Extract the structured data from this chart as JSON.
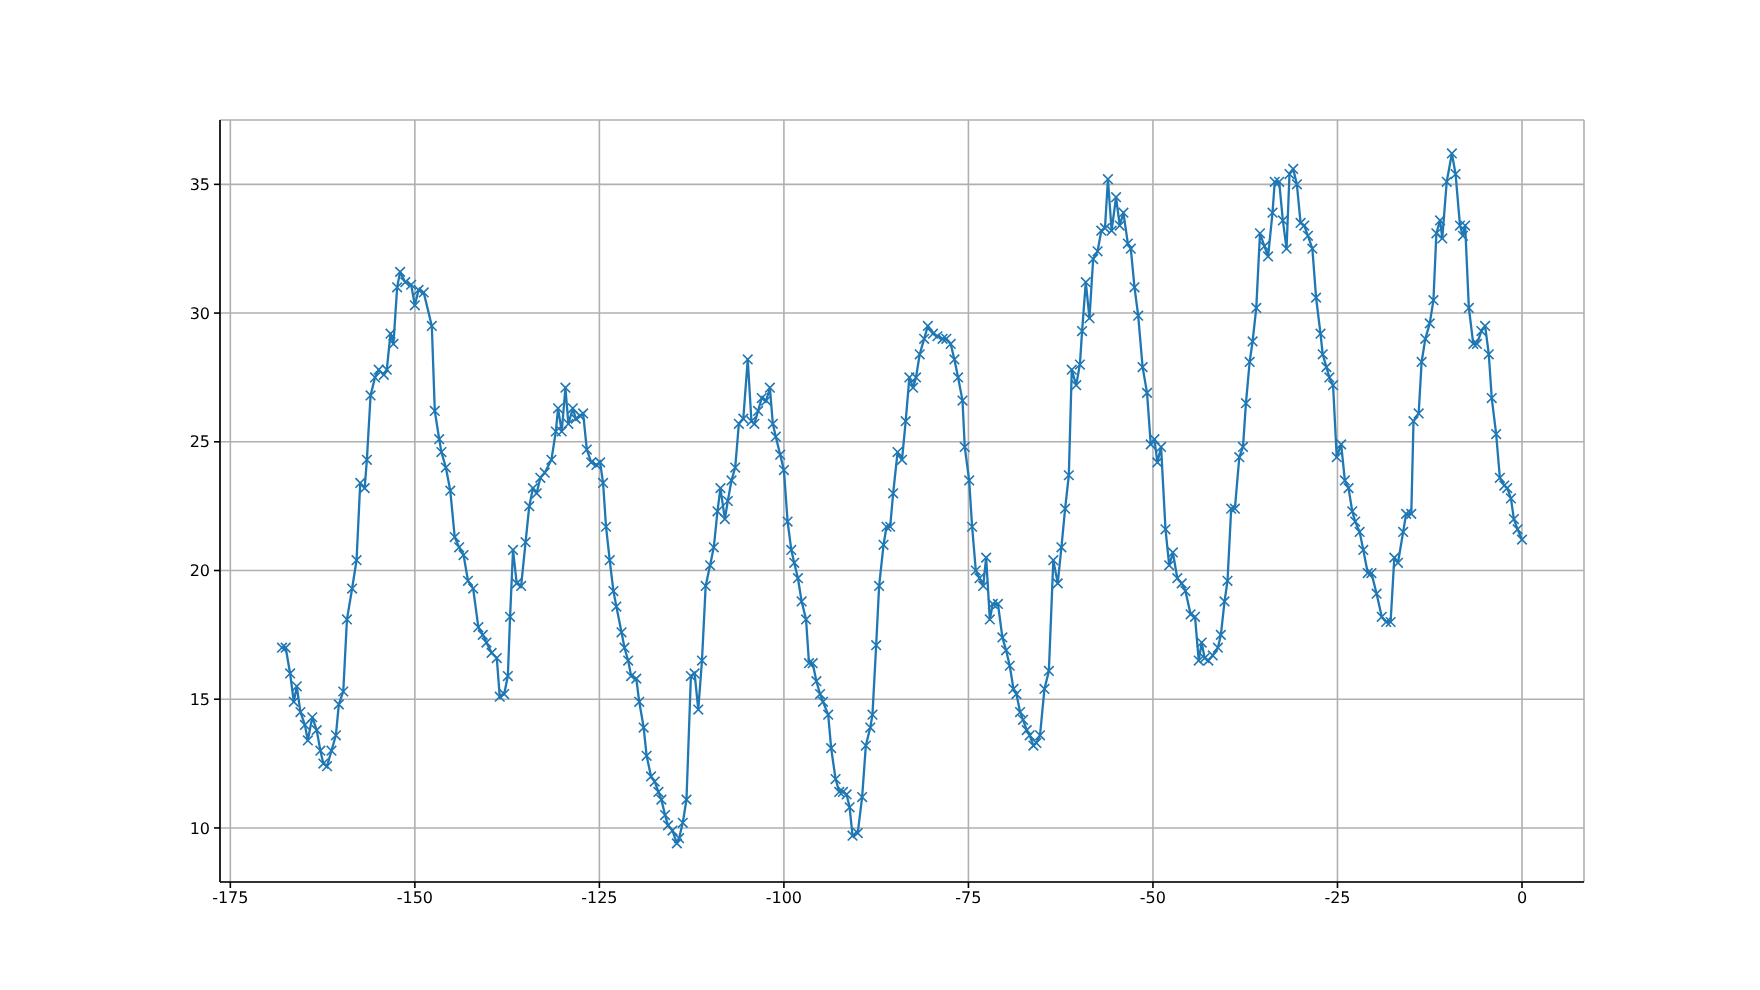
{
  "chart_data": {
    "type": "line",
    "color": "#1f77b4",
    "marker": "cross",
    "line_style": "solid",
    "grid": true,
    "xlim": [
      -176.4,
      8.4
    ],
    "ylim": [
      7.9,
      37.5
    ],
    "xticks": [
      -175,
      -150,
      -125,
      -100,
      -75,
      -50,
      -25,
      0
    ],
    "yticks": [
      10,
      15,
      20,
      25,
      30,
      35
    ],
    "x": [
      -168,
      -167.5,
      -166.9,
      -166.4,
      -166.0,
      -165.5,
      -164.9,
      -164.5,
      -163.9,
      -163.3,
      -162.8,
      -162.4,
      -161.9,
      -161.3,
      -160.7,
      -160.3,
      -159.7,
      -159.2,
      -158.5,
      -157.9,
      -157.4,
      -156.8,
      -156.5,
      -156.0,
      -155.4,
      -154.9,
      -154.2,
      -153.8,
      -153.3,
      -152.9,
      -152.4,
      -152.0,
      -151.3,
      -150.5,
      -150.0,
      -149.5,
      -148.8,
      -147.7,
      -147.3,
      -146.7,
      -146.4,
      -145.8,
      -145.2,
      -144.6,
      -144.0,
      -143.4,
      -142.8,
      -142.1,
      -141.4,
      -140.8,
      -140.3,
      -139.6,
      -138.9,
      -138.5,
      -137.9,
      -137.4,
      -137.1,
      -136.7,
      -136.2,
      -135.6,
      -135.0,
      -134.5,
      -134.0,
      -133.5,
      -133.0,
      -132.4,
      -131.5,
      -130.9,
      -130.6,
      -130.1,
      -129.6,
      -129.2,
      -128.6,
      -128.2,
      -127.6,
      -127.2,
      -126.7,
      -126.1,
      -125.4,
      -124.9,
      -124.5,
      -124.1,
      -123.6,
      -123.1,
      -122.7,
      -122.0,
      -121.6,
      -121.1,
      -120.7,
      -120.0,
      -119.6,
      -119.0,
      -118.6,
      -118.0,
      -117.5,
      -117.0,
      -116.6,
      -116.1,
      -115.7,
      -115.1,
      -114.5,
      -114.2,
      -113.7,
      -113.2,
      -112.6,
      -112.1,
      -111.6,
      -111.1,
      -110.6,
      -110.0,
      -109.5,
      -109.0,
      -108.6,
      -108.0,
      -107.6,
      -107.1,
      -106.6,
      -106.1,
      -105.5,
      -104.9,
      -104.4,
      -104.0,
      -103.5,
      -103.0,
      -102.4,
      -101.9,
      -101.5,
      -101.1,
      -100.5,
      -100.0,
      -99.5,
      -99.0,
      -98.6,
      -98.1,
      -97.6,
      -97.0,
      -96.6,
      -96.1,
      -95.6,
      -95.1,
      -94.7,
      -94.0,
      -93.6,
      -93.0,
      -92.5,
      -92.0,
      -91.5,
      -91.1,
      -90.7,
      -90.0,
      -89.4,
      -88.9,
      -88.3,
      -88.0,
      -87.5,
      -87.1,
      -86.5,
      -86.1,
      -85.6,
      -85.2,
      -84.6,
      -84.0,
      -83.5,
      -83.0,
      -82.5,
      -82.1,
      -81.6,
      -81.0,
      -80.5,
      -79.8,
      -79.2,
      -78.5,
      -78.0,
      -77.4,
      -76.9,
      -76.4,
      -75.8,
      -75.5,
      -74.9,
      -74.5,
      -74.0,
      -73.5,
      -73.0,
      -72.6,
      -72.1,
      -71.7,
      -71.0,
      -70.4,
      -69.9,
      -69.4,
      -68.9,
      -68.5,
      -68.0,
      -67.6,
      -67.1,
      -66.7,
      -66.2,
      -65.8,
      -65.3,
      -64.7,
      -64.1,
      -63.5,
      -62.9,
      -62.4,
      -61.9,
      -61.4,
      -61.0,
      -60.4,
      -59.9,
      -59.6,
      -59.1,
      -58.6,
      -58.1,
      -57.5,
      -57.0,
      -56.5,
      -56.1,
      -55.6,
      -55.0,
      -54.5,
      -54.0,
      -53.4,
      -53.0,
      -52.5,
      -52.0,
      -51.4,
      -50.8,
      -50.3,
      -49.8,
      -49.4,
      -48.9,
      -48.3,
      -47.8,
      -47.3,
      -46.7,
      -46.1,
      -45.6,
      -44.9,
      -44.3,
      -43.8,
      -43.4,
      -43.0,
      -42.5,
      -41.9,
      -41.2,
      -40.8,
      -40.3,
      -39.9,
      -39.4,
      -38.9,
      -38.3,
      -37.8,
      -37.4,
      -36.9,
      -36.5,
      -36.0,
      -35.5,
      -34.9,
      -34.4,
      -33.8,
      -33.5,
      -32.9,
      -32.4,
      -31.9,
      -31.5,
      -31.0,
      -30.5,
      -30.0,
      -29.5,
      -29.0,
      -28.4,
      -27.9,
      -27.3,
      -27.0,
      -26.5,
      -26.1,
      -25.6,
      -25.1,
      -24.5,
      -24.0,
      -23.5,
      -23.0,
      -22.6,
      -22.0,
      -21.5,
      -20.9,
      -20.4,
      -19.7,
      -19.0,
      -18.4,
      -17.8,
      -17.3,
      -16.8,
      -16.1,
      -15.7,
      -15.0,
      -14.7,
      -14.0,
      -13.6,
      -13.1,
      -12.5,
      -12.0,
      -11.6,
      -11.1,
      -10.8,
      -10.2,
      -9.5,
      -9.0,
      -8.4,
      -8.0,
      -7.7,
      -7.2,
      -6.6,
      -6.1,
      -5.5,
      -5.0,
      -4.5,
      -4.1,
      -3.5,
      -3.0,
      -2.4,
      -2.0,
      -1.5,
      -1.1,
      -0.6,
      0
    ],
    "values": [
      17.0,
      17.0,
      16.0,
      14.9,
      15.5,
      14.5,
      14.0,
      13.4,
      14.3,
      13.8,
      13.0,
      12.5,
      12.4,
      13.0,
      13.6,
      14.8,
      15.3,
      18.1,
      19.3,
      20.4,
      23.4,
      23.2,
      24.3,
      26.8,
      27.5,
      27.8,
      27.6,
      27.8,
      29.2,
      28.8,
      31.0,
      31.6,
      31.2,
      31.1,
      30.3,
      30.9,
      30.8,
      29.5,
      26.2,
      25.1,
      24.6,
      24.0,
      23.1,
      21.3,
      20.9,
      20.6,
      19.6,
      19.3,
      17.8,
      17.5,
      17.2,
      16.8,
      16.6,
      15.1,
      15.2,
      15.9,
      18.2,
      20.8,
      19.5,
      19.4,
      21.1,
      22.5,
      23.2,
      23.0,
      23.6,
      23.8,
      24.3,
      25.4,
      26.3,
      25.4,
      27.1,
      25.7,
      26.3,
      25.9,
      26.0,
      26.1,
      24.7,
      24.2,
      24.1,
      24.2,
      23.4,
      21.7,
      20.4,
      19.2,
      18.6,
      17.6,
      17.0,
      16.5,
      15.9,
      15.8,
      14.9,
      13.9,
      12.8,
      12.0,
      11.8,
      11.4,
      11.1,
      10.5,
      10.1,
      9.9,
      9.4,
      9.6,
      10.2,
      11.1,
      15.9,
      16.0,
      14.6,
      16.5,
      19.4,
      20.2,
      20.9,
      22.3,
      23.2,
      22.0,
      22.7,
      23.5,
      24.0,
      25.7,
      25.9,
      28.2,
      25.8,
      25.7,
      26.2,
      26.7,
      26.6,
      27.1,
      25.7,
      25.2,
      24.5,
      23.9,
      21.9,
      20.8,
      20.3,
      19.7,
      18.8,
      18.1,
      16.4,
      16.4,
      15.7,
      15.2,
      14.9,
      14.4,
      13.1,
      11.9,
      11.4,
      11.4,
      11.3,
      10.8,
      9.7,
      9.8,
      11.2,
      13.2,
      13.9,
      14.4,
      17.1,
      19.4,
      21.0,
      21.7,
      21.7,
      23.0,
      24.6,
      24.3,
      25.8,
      27.5,
      27.1,
      27.5,
      28.4,
      29.0,
      29.5,
      29.2,
      29.1,
      29.0,
      29.0,
      28.8,
      28.2,
      27.5,
      26.6,
      24.8,
      23.5,
      21.7,
      20.0,
      19.7,
      19.4,
      20.5,
      18.1,
      18.7,
      18.7,
      17.4,
      16.9,
      16.3,
      15.4,
      15.2,
      14.5,
      14.2,
      13.8,
      13.6,
      13.2,
      13.3,
      13.6,
      15.4,
      16.1,
      20.4,
      19.5,
      20.9,
      22.4,
      23.7,
      27.8,
      27.2,
      28.0,
      29.3,
      31.2,
      29.8,
      32.1,
      32.4,
      33.2,
      33.3,
      35.2,
      33.2,
      34.5,
      33.4,
      33.9,
      32.7,
      32.5,
      31.0,
      29.9,
      27.9,
      26.9,
      24.9,
      25.1,
      24.2,
      24.8,
      21.6,
      20.2,
      20.7,
      19.7,
      19.5,
      19.2,
      18.3,
      18.2,
      16.5,
      17.2,
      16.6,
      16.5,
      16.7,
      17.0,
      17.5,
      18.8,
      19.6,
      22.4,
      22.4,
      24.4,
      24.8,
      26.5,
      28.1,
      28.9,
      30.2,
      33.1,
      32.6,
      32.2,
      33.9,
      35.1,
      35.1,
      33.6,
      32.5,
      35.4,
      35.6,
      35.0,
      33.5,
      33.4,
      33.0,
      32.5,
      30.6,
      29.2,
      28.4,
      27.9,
      27.5,
      27.2,
      24.4,
      24.9,
      23.5,
      23.2,
      22.3,
      21.9,
      21.5,
      20.8,
      19.9,
      19.9,
      19.1,
      18.2,
      18.0,
      18.0,
      20.5,
      20.3,
      21.5,
      22.2,
      22.2,
      25.8,
      26.1,
      28.1,
      29.0,
      29.6,
      30.5,
      33.1,
      33.6,
      32.9,
      35.1,
      36.2,
      35.4,
      33.4,
      33.0,
      33.4,
      30.2,
      28.8,
      28.8,
      29.3,
      29.5,
      28.4,
      26.7,
      25.3,
      23.6,
      23.3,
      23.2,
      22.8,
      22.0,
      21.6,
      21.2
    ]
  }
}
